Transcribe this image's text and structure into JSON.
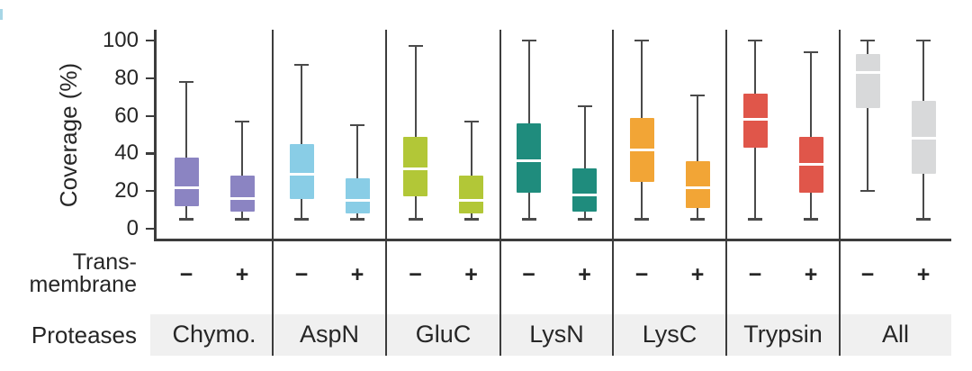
{
  "chart_data": {
    "type": "boxplot",
    "title": "",
    "ylabel": "Coverage (%)",
    "xlabel": "",
    "ylim": [
      0,
      100
    ],
    "yticks": [
      "0",
      "20",
      "40",
      "60",
      "80",
      "100"
    ],
    "grid": false,
    "legend": "none",
    "row_labels": {
      "transmembrane_line1": "Trans-",
      "transmembrane_line2": "membrane",
      "proteases": "Proteases"
    },
    "groups": [
      {
        "protease": "Chymo.",
        "color": "#8b84c2",
        "boxes": [
          {
            "transmembrane": "−",
            "whisker_low": 5,
            "q1": 12,
            "median": 22,
            "q3": 38,
            "whisker_high": 78
          },
          {
            "transmembrane": "+",
            "whisker_low": 5,
            "q1": 9,
            "median": 16,
            "q3": 28,
            "whisker_high": 57
          }
        ]
      },
      {
        "protease": "AspN",
        "color": "#89cde6",
        "boxes": [
          {
            "transmembrane": "−",
            "whisker_low": 5,
            "q1": 16,
            "median": 29,
            "q3": 45,
            "whisker_high": 87
          },
          {
            "transmembrane": "+",
            "whisker_low": 5,
            "q1": 8,
            "median": 15,
            "q3": 27,
            "whisker_high": 55
          }
        ]
      },
      {
        "protease": "GluC",
        "color": "#b2c737",
        "boxes": [
          {
            "transmembrane": "−",
            "whisker_low": 5,
            "q1": 17,
            "median": 32,
            "q3": 49,
            "whisker_high": 97
          },
          {
            "transmembrane": "+",
            "whisker_low": 5,
            "q1": 8,
            "median": 15,
            "q3": 28,
            "whisker_high": 57
          }
        ]
      },
      {
        "protease": "LysN",
        "color": "#1f8c7d",
        "boxes": [
          {
            "transmembrane": "−",
            "whisker_low": 5,
            "q1": 19,
            "median": 36,
            "q3": 56,
            "whisker_high": 100
          },
          {
            "transmembrane": "+",
            "whisker_low": 5,
            "q1": 9,
            "median": 18,
            "q3": 32,
            "whisker_high": 65
          }
        ]
      },
      {
        "protease": "LysC",
        "color": "#f2a536",
        "boxes": [
          {
            "transmembrane": "−",
            "whisker_low": 5,
            "q1": 25,
            "median": 42,
            "q3": 59,
            "whisker_high": 100
          },
          {
            "transmembrane": "+",
            "whisker_low": 5,
            "q1": 11,
            "median": 22,
            "q3": 36,
            "whisker_high": 71
          }
        ]
      },
      {
        "protease": "Trypsin",
        "color": "#e0564a",
        "boxes": [
          {
            "transmembrane": "−",
            "whisker_low": 5,
            "q1": 43,
            "median": 58,
            "q3": 72,
            "whisker_high": 100
          },
          {
            "transmembrane": "+",
            "whisker_low": 5,
            "q1": 19,
            "median": 34,
            "q3": 49,
            "whisker_high": 94
          }
        ]
      },
      {
        "protease": "All",
        "color": "#d8d9da",
        "boxes": [
          {
            "transmembrane": "−",
            "whisker_low": 20,
            "q1": 64,
            "median": 83,
            "q3": 93,
            "whisker_high": 100
          },
          {
            "transmembrane": "+",
            "whisker_low": 5,
            "q1": 29,
            "median": 48,
            "q3": 68,
            "whisker_high": 100
          }
        ]
      }
    ],
    "colors": {
      "axis": "#3c3c3c",
      "whisker": "#4a4a4a",
      "median": "#ffffff",
      "strip_bg": "#f0f0f0",
      "text": "#262626",
      "edge_mark": "#a7d6e6"
    }
  }
}
